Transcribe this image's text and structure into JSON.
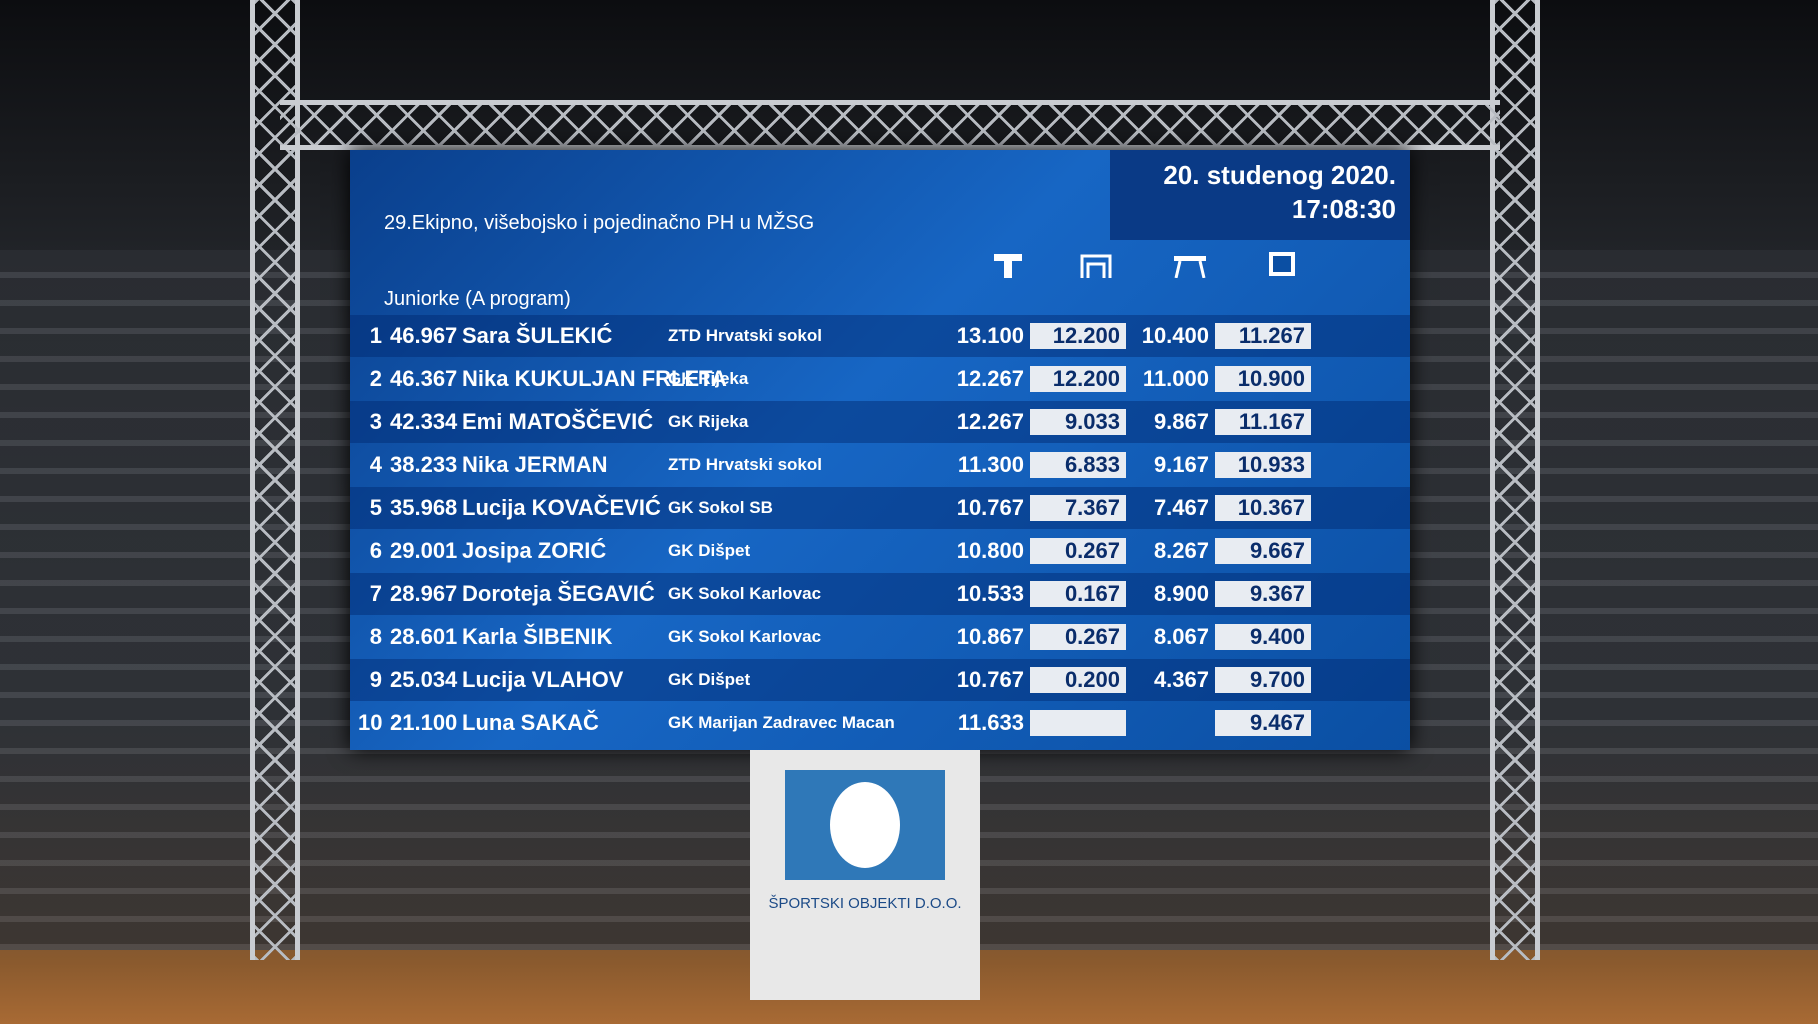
{
  "board": {
    "title": "29.Ekipno, višebojsko i pojedinačno PH u MŽSG",
    "date": "20. studenog 2020.",
    "time": "17:08:30",
    "category": "Juniorke (A program)",
    "rows": [
      {
        "rank": 1,
        "total": "46.967",
        "name": "Sara ŠULEKIĆ",
        "club": "ZTD Hrvatski sokol",
        "scores": [
          "13.100",
          "12.200",
          "10.400",
          "11.267"
        ]
      },
      {
        "rank": 2,
        "total": "46.367",
        "name": "Nika KUKULJAN FRLETA",
        "club": "GK Rijeka",
        "scores": [
          "12.267",
          "12.200",
          "11.000",
          "10.900"
        ]
      },
      {
        "rank": 3,
        "total": "42.334",
        "name": "Emi MATOŠČEVIĆ",
        "club": "GK Rijeka",
        "scores": [
          "12.267",
          "9.033",
          "9.867",
          "11.167"
        ]
      },
      {
        "rank": 4,
        "total": "38.233",
        "name": "Nika JERMAN",
        "club": "ZTD Hrvatski sokol",
        "scores": [
          "11.300",
          "6.833",
          "9.167",
          "10.933"
        ]
      },
      {
        "rank": 5,
        "total": "35.968",
        "name": "Lucija KOVAČEVIĆ",
        "club": "GK Sokol SB",
        "scores": [
          "10.767",
          "7.367",
          "7.467",
          "10.367"
        ]
      },
      {
        "rank": 6,
        "total": "29.001",
        "name": "Josipa ZORIĆ",
        "club": "GK Dišpet",
        "scores": [
          "10.800",
          "0.267",
          "8.267",
          "9.667"
        ]
      },
      {
        "rank": 7,
        "total": "28.967",
        "name": "Doroteja ŠEGAVIĆ",
        "club": "GK Sokol Karlovac",
        "scores": [
          "10.533",
          "0.167",
          "8.900",
          "9.367"
        ]
      },
      {
        "rank": 8,
        "total": "28.601",
        "name": "Karla ŠIBENIK",
        "club": "GK Sokol Karlovac",
        "scores": [
          "10.867",
          "0.267",
          "8.067",
          "9.400"
        ]
      },
      {
        "rank": 9,
        "total": "25.034",
        "name": "Lucija VLAHOV",
        "club": "GK Dišpet",
        "scores": [
          "10.767",
          "0.200",
          "4.367",
          "9.700"
        ]
      },
      {
        "rank": 10,
        "total": "21.100",
        "name": "Luna SAKAČ",
        "club": "GK Marijan Zadravec Macan",
        "scores": [
          "11.633",
          null,
          null,
          "9.467"
        ]
      }
    ]
  },
  "door": {
    "sign": "ŠPORTSKI OBJEKTI D.O.O."
  }
}
